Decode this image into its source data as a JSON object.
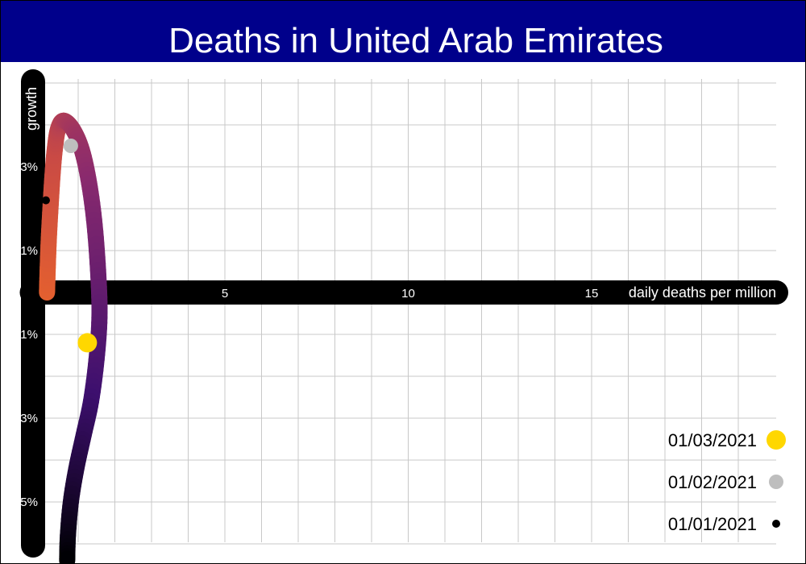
{
  "title": "Deaths in United Arab Emirates",
  "chart_data": {
    "type": "line",
    "title": "Deaths in United Arab Emirates",
    "xlabel": "daily deaths per million",
    "ylabel": "growth",
    "xlim": [
      -0.35,
      19.8
    ],
    "ylim": [
      -6.5,
      5.3
    ],
    "x_ticks": [
      "5",
      "10",
      "15"
    ],
    "x_tick_values": [
      5,
      10,
      15
    ],
    "y_ticks": [
      "3%",
      "1%",
      "-1%",
      "-3%",
      "-5%"
    ],
    "y_tick_values": [
      3,
      1,
      -1,
      -3,
      -5
    ],
    "grid": true,
    "legend_position": "bottom-right",
    "series": [
      {
        "points": [
          {
            "x": 0.15,
            "y": 0.0
          },
          {
            "x": 0.17,
            "y": 0.6
          },
          {
            "x": 0.2,
            "y": 1.3
          },
          {
            "x": 0.25,
            "y": 2.1
          },
          {
            "x": 0.3,
            "y": 2.8
          },
          {
            "x": 0.36,
            "y": 3.4
          },
          {
            "x": 0.45,
            "y": 3.9
          },
          {
            "x": 0.6,
            "y": 4.1
          },
          {
            "x": 0.85,
            "y": 3.9
          },
          {
            "x": 1.1,
            "y": 3.4
          },
          {
            "x": 1.3,
            "y": 2.6
          },
          {
            "x": 1.45,
            "y": 1.6
          },
          {
            "x": 1.55,
            "y": 0.4
          },
          {
            "x": 1.58,
            "y": -0.6
          },
          {
            "x": 1.5,
            "y": -1.6
          },
          {
            "x": 1.35,
            "y": -2.6
          },
          {
            "x": 1.15,
            "y": -3.4
          },
          {
            "x": 0.95,
            "y": -4.2
          },
          {
            "x": 0.8,
            "y": -5.0
          },
          {
            "x": 0.72,
            "y": -5.8
          },
          {
            "x": 0.7,
            "y": -6.4
          }
        ],
        "colors": [
          "#e4602f",
          "#c94a45",
          "#8a2a6e",
          "#3d0f6e",
          "#000004"
        ]
      }
    ],
    "markers": [
      {
        "label": "01/01/2021",
        "x": 0.12,
        "y": 2.2,
        "color": "#000000",
        "size": "small"
      },
      {
        "label": "01/02/2021",
        "x": 0.8,
        "y": 3.5,
        "color": "#bebebe",
        "size": "medium"
      },
      {
        "label": "01/03/2021",
        "x": 1.25,
        "y": -1.2,
        "color": "#ffd700",
        "size": "large"
      }
    ]
  },
  "legend": [
    {
      "label": "01/03/2021",
      "color": "#ffd700"
    },
    {
      "label": "01/02/2021",
      "color": "#bebebe"
    },
    {
      "label": "01/01/2021",
      "color": "#000000"
    }
  ]
}
